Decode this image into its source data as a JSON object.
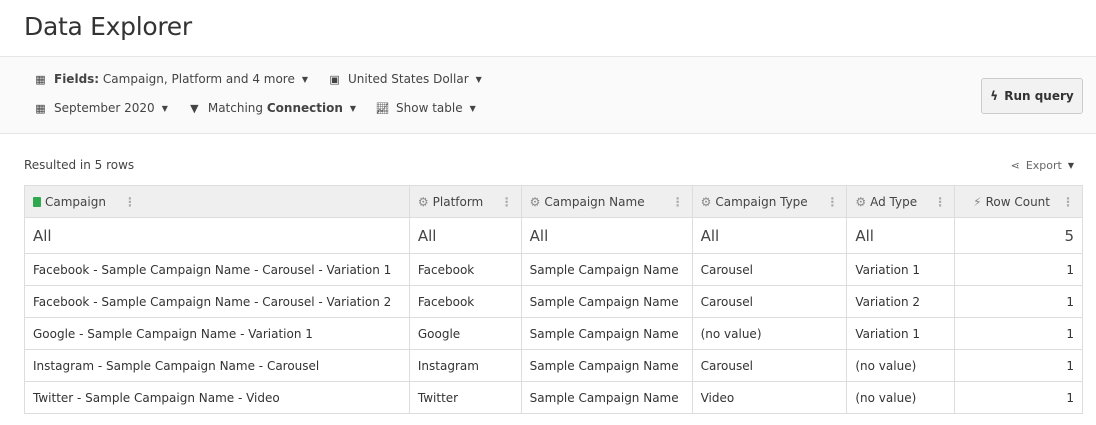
{
  "header": {
    "title": "Data Explorer"
  },
  "toolbar": {
    "fields_label": "Fields:",
    "fields_value": "Campaign, Platform and 4 more",
    "currency": "United States Dollar",
    "date": "September 2020",
    "filter_prefix": "Matching",
    "filter_value": "Connection",
    "view": "Show table",
    "run_label": "Run query"
  },
  "result_text": "Resulted in 5 rows",
  "export_label": "Export",
  "table": {
    "columns": [
      "Campaign",
      "Platform",
      "Campaign Name",
      "Campaign Type",
      "Ad Type",
      "Row Count"
    ],
    "totals": [
      "All",
      "All",
      "All",
      "All",
      "All",
      "5"
    ],
    "rows": [
      [
        "Facebook - Sample Campaign Name - Carousel - Variation 1",
        "Facebook",
        "Sample Campaign Name",
        "Carousel",
        "Variation 1",
        "1"
      ],
      [
        "Facebook - Sample Campaign Name - Carousel - Variation 2",
        "Facebook",
        "Sample Campaign Name",
        "Carousel",
        "Variation 2",
        "1"
      ],
      [
        "Google - Sample Campaign Name - Variation 1",
        "Google",
        "Sample Campaign Name",
        "(no value)",
        "Variation 1",
        "1"
      ],
      [
        "Instagram - Sample Campaign Name - Carousel",
        "Instagram",
        "Sample Campaign Name",
        "Carousel",
        "(no value)",
        "1"
      ],
      [
        "Twitter - Sample Campaign Name - Video",
        "Twitter",
        "Sample Campaign Name",
        "Video",
        "(no value)",
        "1"
      ]
    ]
  },
  "colors": {
    "sheet_icon": "#2fa84f",
    "header_bg": "#efefef"
  }
}
